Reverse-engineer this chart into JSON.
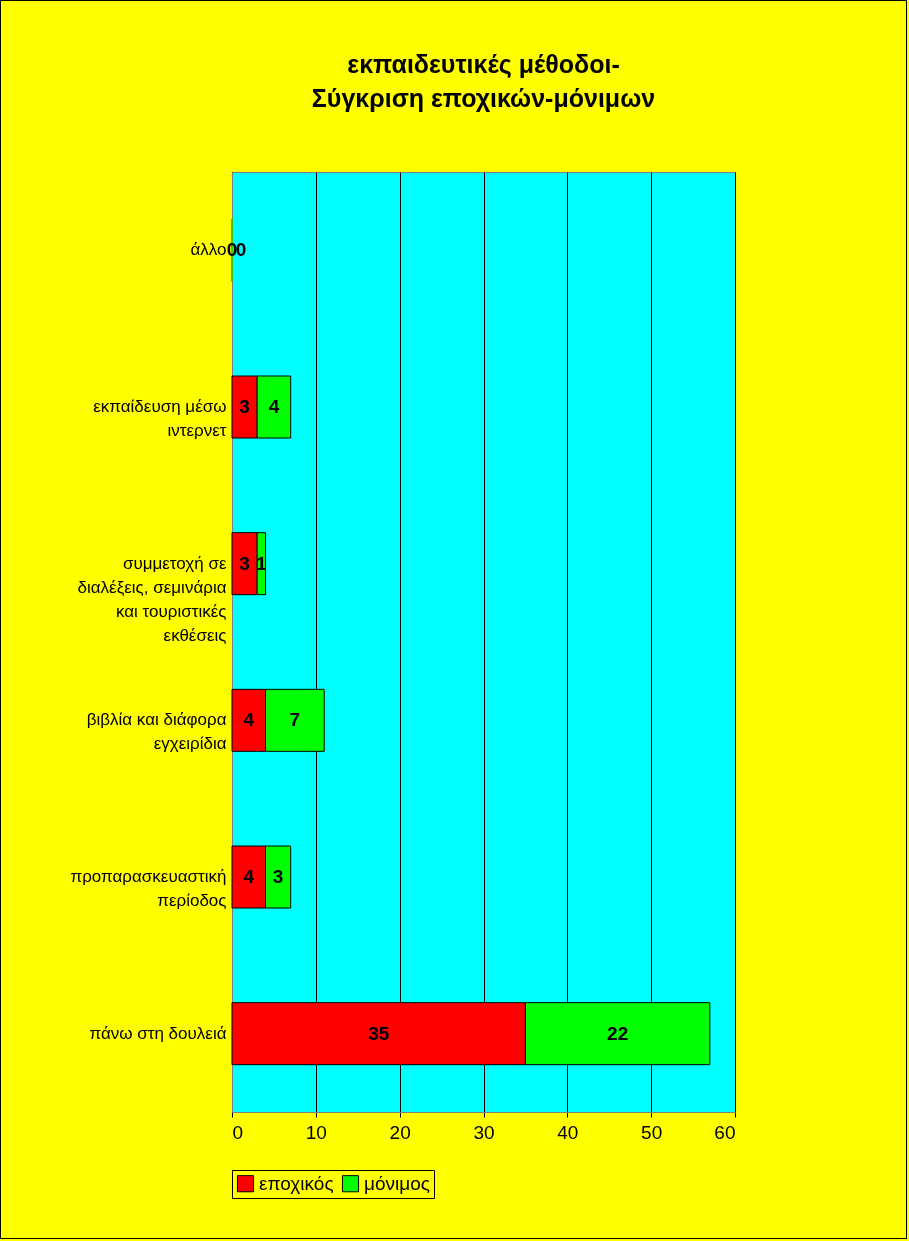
{
  "chart_data": {
    "type": "bar",
    "orientation": "horizontal",
    "stacked": true,
    "title": "εκπαιδευτικές μέθοδοι-\nΣύγκριση εποχικών-μόνιμων",
    "categories": [
      "άλλο",
      "εκπαίδευση μέσω ιντερνετ",
      "συμμετοχή σε διαλέξεις, σεμινάρια και τουριστικές εκθέσεις",
      "βιβλία και διάφορα εγχειρίδια",
      "προπαρασκευαστική περίοδος",
      "πάνω στη δουλειά"
    ],
    "series": [
      {
        "name": "εποχικός",
        "color": "#ff0000",
        "values": [
          0,
          3,
          3,
          4,
          4,
          35
        ]
      },
      {
        "name": "μόνιμος",
        "color": "#00ff00",
        "values": [
          0,
          4,
          1,
          7,
          3,
          22
        ]
      }
    ],
    "xlim": [
      0,
      60
    ],
    "xticks": [
      0,
      10,
      20,
      30,
      40,
      50,
      60
    ],
    "grid": "x",
    "legend": "bottom",
    "data_labels": true
  }
}
